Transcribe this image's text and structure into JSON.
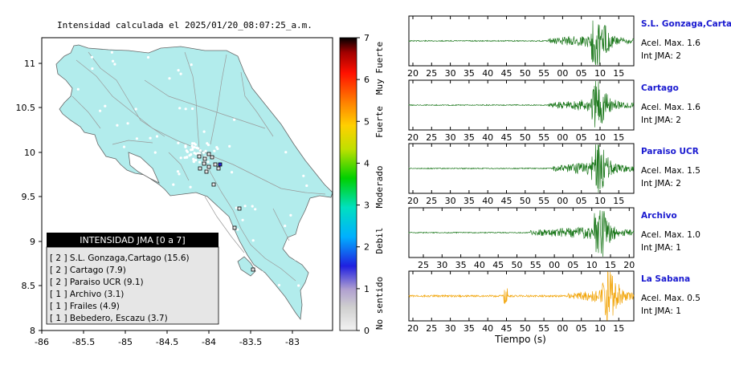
{
  "map": {
    "title": "Intensidad calculada el 2025/01/20_08:07:25_a.m.",
    "x_ticks": [
      "-86",
      "-85.5",
      "-85",
      "-84.5",
      "-84",
      "-83.5",
      "-83"
    ],
    "y_ticks": [
      "11",
      "10.5",
      "10",
      "9.5",
      "9",
      "8.5",
      "8"
    ],
    "legend": {
      "header": "INTENSIDAD JMA [0 a 7]",
      "entries": [
        "[ 2 ]  S.L. Gonzaga,Cartago (15.6)",
        "[ 2 ]  Cartago (7.9)",
        "[ 2 ]  Paraiso UCR (9.1)",
        "[ 1 ]  Archivo (3.1)",
        "[ 1 ]  Frailes (4.9)",
        "[ 1 ]  Bebedero, Escazu (3.7)"
      ]
    }
  },
  "colorbar": {
    "ticks": [
      "7",
      "6",
      "5",
      "4",
      "3",
      "2",
      "1",
      "0"
    ],
    "labels": [
      "Muy Fuerte",
      "Fuerte",
      "Moderado",
      "Debil",
      "No sentido"
    ]
  },
  "chart_data": [
    {
      "type": "map",
      "title": "Intensidad calculada el 2025/01/20_08:07:25_a.m.",
      "xlim": [
        -86,
        -82.5
      ],
      "ylim": [
        8,
        11.3
      ],
      "colorbar_range": [
        0,
        7
      ],
      "stations": [
        {
          "name": "S.L. Gonzaga,Cartago",
          "intensity": 2,
          "value": 15.6
        },
        {
          "name": "Cartago",
          "intensity": 2,
          "value": 7.9
        },
        {
          "name": "Paraiso UCR",
          "intensity": 2,
          "value": 9.1
        },
        {
          "name": "Archivo",
          "intensity": 1,
          "value": 3.1
        },
        {
          "name": "Frailes",
          "intensity": 1,
          "value": 4.9
        },
        {
          "name": "Bebedero, Escazu",
          "intensity": 1,
          "value": 3.7
        }
      ]
    },
    {
      "type": "line",
      "xlabel": "Tiempo (s)",
      "traces": [
        {
          "station": "S.L. Gonzaga,Cartago",
          "accel": "Acel. Max. 1.6",
          "jma": "Int JMA: 2",
          "ticks": [
            "20",
            "25",
            "30",
            "35",
            "40",
            "45",
            "50",
            "55",
            "00",
            "05",
            "10",
            "15"
          ],
          "color": "#1f7a1f",
          "onset": 55,
          "peak": 10
        },
        {
          "station": "Cartago",
          "accel": "Acel. Max. 1.6",
          "jma": "Int JMA: 2",
          "ticks": [
            "20",
            "25",
            "30",
            "35",
            "40",
            "45",
            "50",
            "55",
            "00",
            "05",
            "10",
            "15"
          ],
          "color": "#1f7a1f",
          "onset": 55,
          "peak": 10
        },
        {
          "station": "Paraiso UCR",
          "accel": "Acel. Max. 1.5",
          "jma": "Int JMA: 2",
          "ticks": [
            "20",
            "25",
            "30",
            "35",
            "40",
            "45",
            "50",
            "55",
            "00",
            "05",
            "10",
            "15"
          ],
          "color": "#1f7a1f",
          "onset": 57,
          "peak": 8
        },
        {
          "station": "Archivo",
          "accel": "Acel. Max. 1.0",
          "jma": "Int JMA: 1",
          "ticks": [
            "25",
            "30",
            "35",
            "40",
            "45",
            "50",
            "55",
            "00",
            "05",
            "10",
            "15",
            "20"
          ],
          "color": "#1f7a1f",
          "onset": 0,
          "peak": 13
        },
        {
          "station": "La Sabana",
          "accel": "Acel. Max. 0.5",
          "jma": "Int JMA: 1",
          "ticks": [
            "20",
            "25",
            "30",
            "35",
            "40",
            "45",
            "50",
            "55",
            "00",
            "05",
            "10",
            "15"
          ],
          "color": "#f2a60c",
          "onset": 5,
          "peak": 10
        }
      ]
    }
  ],
  "waveforms": {
    "xlabel": "Tiempo (s)"
  }
}
